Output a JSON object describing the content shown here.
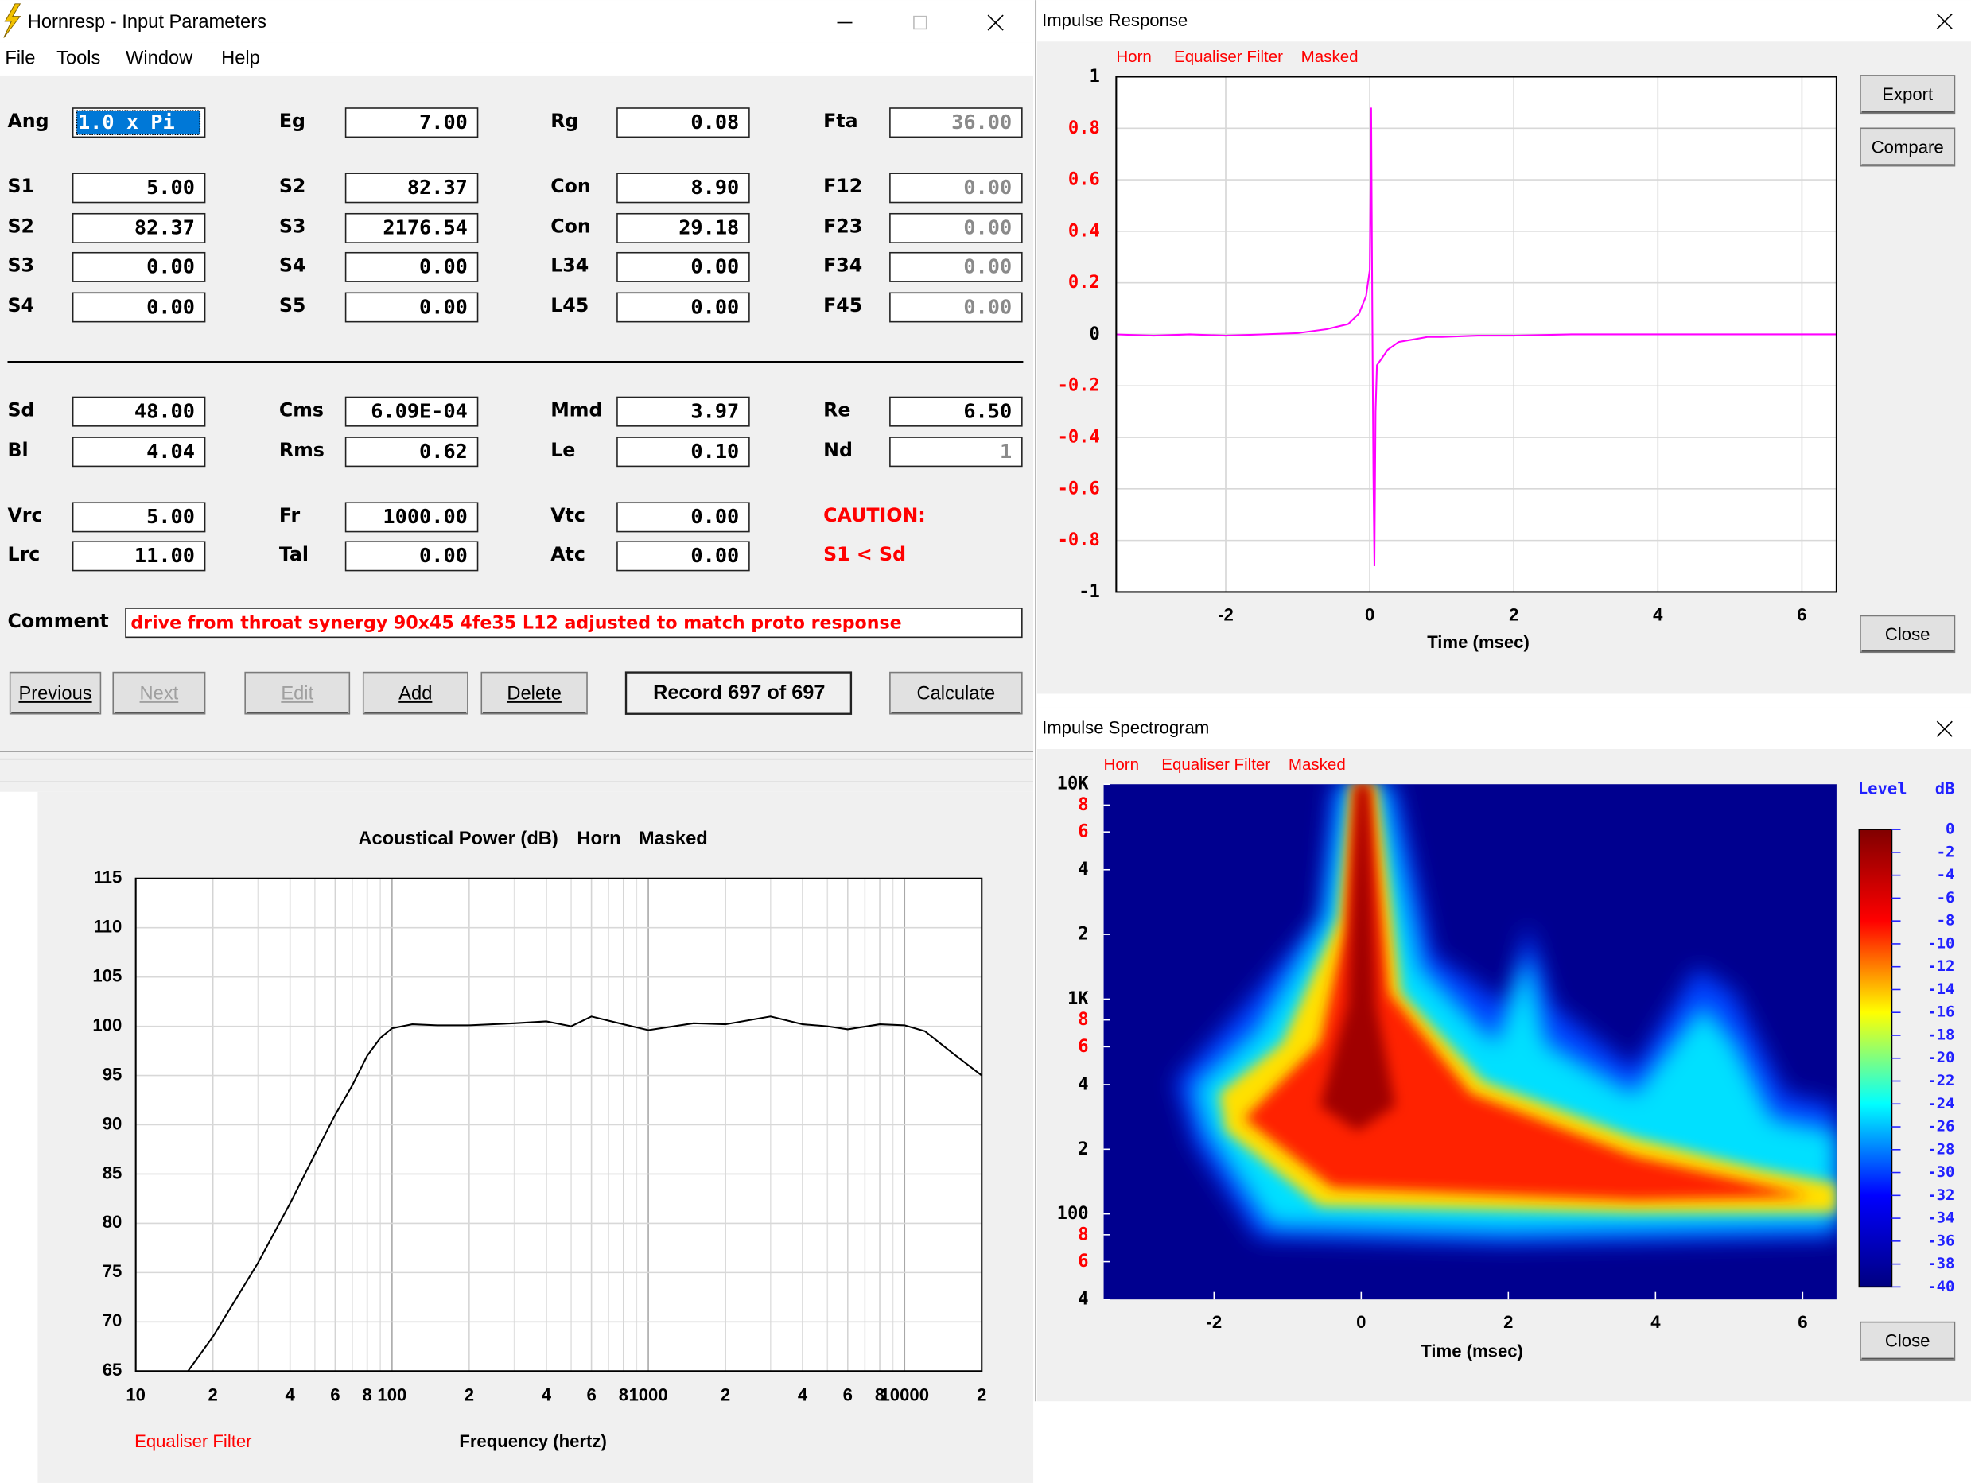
{
  "input_window": {
    "title": "Hornresp - Input Parameters",
    "menu": [
      "File",
      "Tools",
      "Window",
      "Help"
    ],
    "fields": [
      [
        {
          "label": "Ang",
          "value": "1.0 x Pi",
          "selected": true
        },
        {
          "label": "Eg",
          "value": "7.00"
        },
        {
          "label": "Rg",
          "value": "0.08"
        },
        {
          "label": "Fta",
          "value": "36.00",
          "disabled": true
        }
      ],
      [
        {
          "label": "S1",
          "value": "5.00"
        },
        {
          "label": "S2",
          "value": "82.37"
        },
        {
          "label": "Con",
          "value": "8.90"
        },
        {
          "label": "F12",
          "value": "0.00",
          "disabled": true
        }
      ],
      [
        {
          "label": "S2",
          "value": "82.37"
        },
        {
          "label": "S3",
          "value": "2176.54"
        },
        {
          "label": "Con",
          "value": "29.18"
        },
        {
          "label": "F23",
          "value": "0.00",
          "disabled": true
        }
      ],
      [
        {
          "label": "S3",
          "value": "0.00"
        },
        {
          "label": "S4",
          "value": "0.00"
        },
        {
          "label": "L34",
          "value": "0.00"
        },
        {
          "label": "F34",
          "value": "0.00",
          "disabled": true
        }
      ],
      [
        {
          "label": "S4",
          "value": "0.00"
        },
        {
          "label": "S5",
          "value": "0.00"
        },
        {
          "label": "L45",
          "value": "0.00"
        },
        {
          "label": "F45",
          "value": "0.00",
          "disabled": true
        }
      ],
      [
        {
          "label": "Sd",
          "value": "48.00"
        },
        {
          "label": "Cms",
          "value": "6.09E-04"
        },
        {
          "label": "Mmd",
          "value": "3.97"
        },
        {
          "label": "Re",
          "value": "6.50"
        }
      ],
      [
        {
          "label": "Bl",
          "value": "4.04"
        },
        {
          "label": "Rms",
          "value": "0.62"
        },
        {
          "label": "Le",
          "value": "0.10"
        },
        {
          "label": "Nd",
          "value": "1",
          "disabled": true
        }
      ],
      [
        {
          "label": "Vrc",
          "value": "5.00"
        },
        {
          "label": "Fr",
          "value": "1000.00"
        },
        {
          "label": "Vtc",
          "value": "0.00"
        }
      ],
      [
        {
          "label": "Lrc",
          "value": "11.00"
        },
        {
          "label": "Tal",
          "value": "0.00"
        },
        {
          "label": "Atc",
          "value": "0.00"
        }
      ]
    ],
    "caution": {
      "title": "CAUTION:",
      "message": "S1 < Sd"
    },
    "comment": {
      "label": "Comment",
      "value": "drive from throat synergy 90x45 4fe35  L12 adjusted to match proto response"
    },
    "buttons": [
      {
        "label": "Previous"
      },
      {
        "label": "Next",
        "disabled": true
      },
      {
        "label": "Edit",
        "disabled": true
      },
      {
        "label": "Add"
      },
      {
        "label": "Delete"
      }
    ],
    "record": "Record 697 of 697",
    "calculate": "Calculate"
  },
  "chart_data": [
    {
      "type": "line",
      "title": "Impulse Response",
      "labels": [
        "Horn",
        "Equaliser Filter",
        "Masked"
      ],
      "buttons": [
        "Export",
        "Compare",
        "Close"
      ],
      "x": [
        -3.52,
        -3,
        -2.5,
        -2,
        -1.5,
        -1,
        -0.6,
        -0.3,
        -0.15,
        -0.05,
        0,
        0.02,
        0.035,
        0.05,
        0.065,
        0.08,
        0.1,
        0.15,
        0.25,
        0.4,
        0.6,
        0.8,
        1,
        1.5,
        2,
        2.8,
        4,
        5,
        6.48
      ],
      "series": [
        {
          "color": "#ff00ff",
          "values": [
            0,
            -0.005,
            0,
            -0.005,
            0,
            0.005,
            0.02,
            0.04,
            0.08,
            0.15,
            0.25,
            0.88,
            0.1,
            -0.55,
            -0.9,
            -0.3,
            -0.12,
            -0.1,
            -0.06,
            -0.03,
            -0.02,
            -0.01,
            -0.01,
            -0.005,
            -0.005,
            0,
            0,
            0,
            0
          ]
        }
      ],
      "xlim": [
        -3.52,
        6.48
      ],
      "ylim": [
        -1,
        1
      ],
      "xticks": [
        -2,
        0,
        2,
        4,
        6
      ],
      "yticks": [
        1,
        0.8,
        0.6,
        0.4,
        0.2,
        0,
        -0.2,
        -0.4,
        -0.6,
        -0.8,
        -1
      ],
      "ytick_colors": [
        "#000000",
        "#ff0000",
        "#ff0000",
        "#ff0000",
        "#ff0000",
        "#000000",
        "#ff0000",
        "#ff0000",
        "#ff0000",
        "#ff0000",
        "#000000"
      ],
      "xlabel": "Time (msec)",
      "grid": true
    },
    {
      "type": "heatmap",
      "title": "Impulse Spectrogram",
      "labels": [
        "Horn",
        "Equaliser Filter",
        "Masked"
      ],
      "buttons": [
        "Close"
      ],
      "xlim": [
        -3.5,
        6.46
      ],
      "ylim": [
        40,
        10000
      ],
      "log_y": true,
      "xticks": [
        -2,
        0,
        2,
        4,
        6
      ],
      "yticks": [
        {
          "value": 10000,
          "label": "10K"
        },
        {
          "value": 8000,
          "label": "8"
        },
        {
          "value": 6000,
          "label": "6"
        },
        {
          "value": 4000,
          "label": "4"
        },
        {
          "value": 2000,
          "label": "2"
        },
        {
          "value": 1000,
          "label": "1K"
        },
        {
          "value": 800,
          "label": "8"
        },
        {
          "value": 600,
          "label": "6"
        },
        {
          "value": 400,
          "label": "4"
        },
        {
          "value": 200,
          "label": "2"
        },
        100,
        {
          "value": 80,
          "label": "8"
        },
        {
          "value": 60,
          "label": "6"
        },
        {
          "value": 40,
          "label": "4"
        }
      ],
      "ytick_colors": [
        "#000000",
        "#ff0000",
        "#ff0000",
        "#000000",
        "#000000",
        "#000000",
        "#ff0000",
        "#ff0000",
        "#000000",
        "#000000",
        "#000000",
        "#ff0000",
        "#ff0000",
        "#000000"
      ],
      "xlabel": "Time (msec)",
      "colorbar": {
        "title": "Level",
        "unit": "dB",
        "lim": [
          -40,
          0
        ],
        "ticks": [
          0,
          -2,
          -4,
          -6,
          -8,
          -10,
          -12,
          -14,
          -16,
          -18,
          -20,
          -22,
          -24,
          -26,
          -28,
          -30,
          -32,
          -34,
          -36,
          -38,
          -40
        ]
      }
    },
    {
      "type": "line",
      "title": "Acoustical Power (dB)",
      "labels": [
        "Horn",
        "Masked"
      ],
      "note": "Equaliser Filter",
      "x": [
        16,
        20,
        30,
        40,
        50,
        60,
        70,
        80,
        90,
        100,
        120,
        150,
        200,
        300,
        400,
        500,
        600,
        800,
        1000,
        1500,
        2000,
        3000,
        4000,
        5000,
        6000,
        8000,
        10000,
        12000,
        15000,
        20000
      ],
      "series": [
        {
          "color": "#000000",
          "values": [
            65,
            68.5,
            76,
            82,
            87,
            91,
            94,
            97,
            98.8,
            99.8,
            100.2,
            100.1,
            100.1,
            100.3,
            100.5,
            100,
            101,
            100.2,
            99.6,
            100.3,
            100.2,
            101,
            100.2,
            100,
            99.7,
            100.2,
            100.1,
            99.5,
            97.5,
            95
          ]
        }
      ],
      "xlim": [
        10,
        20000
      ],
      "ylim": [
        65,
        115
      ],
      "log_x": true,
      "xticks": [
        10,
        {
          "value": 20,
          "label": "2"
        },
        {
          "value": 40,
          "label": "4"
        },
        {
          "value": 60,
          "label": "6"
        },
        {
          "value": 80,
          "label": "8"
        },
        100,
        {
          "value": 200,
          "label": "2"
        },
        {
          "value": 400,
          "label": "4"
        },
        {
          "value": 600,
          "label": "6"
        },
        {
          "value": 800,
          "label": "8"
        },
        1000,
        {
          "value": 2000,
          "label": "2"
        },
        {
          "value": 4000,
          "label": "4"
        },
        {
          "value": 6000,
          "label": "6"
        },
        {
          "value": 8000,
          "label": "8"
        },
        10000,
        {
          "value": 20000,
          "label": "2"
        }
      ],
      "minor_xticks": [
        30,
        50,
        70,
        90,
        300,
        500,
        700,
        900,
        3000,
        5000,
        7000,
        9000
      ],
      "yticks": [
        65,
        70,
        75,
        80,
        85,
        90,
        95,
        100,
        105,
        110,
        115
      ],
      "xlabel": "Frequency (hertz)",
      "grid": true
    }
  ]
}
